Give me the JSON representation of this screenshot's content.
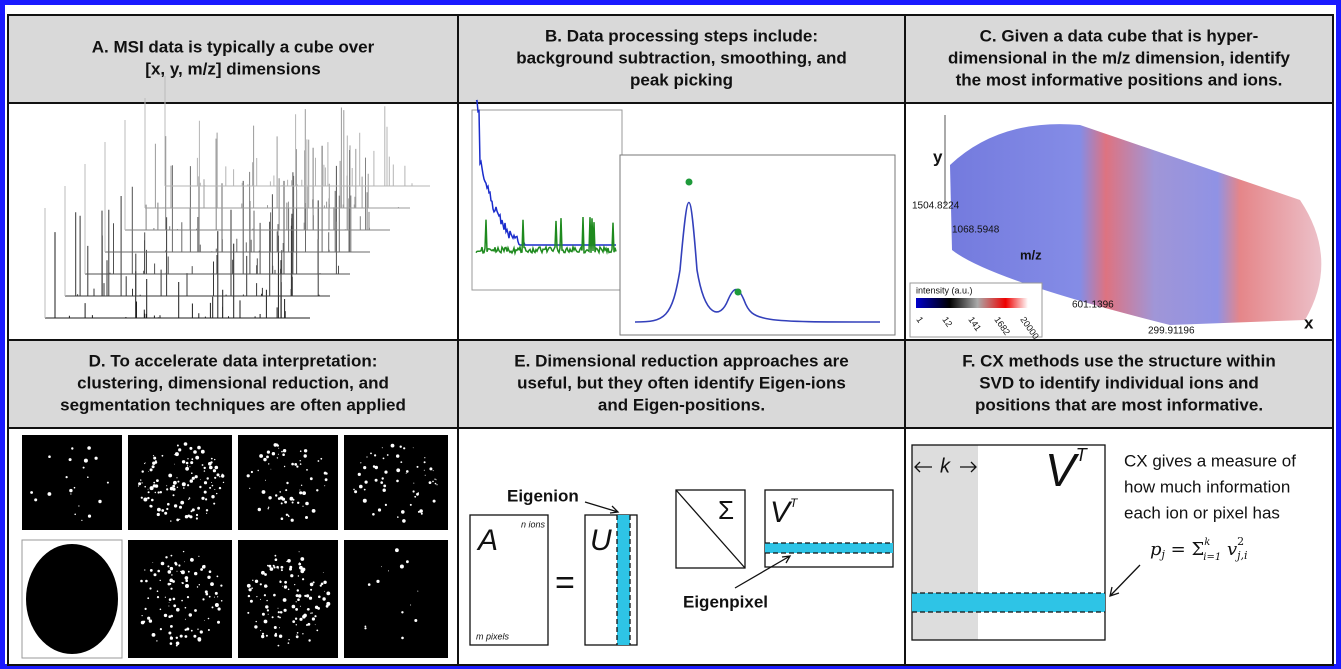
{
  "panels": [
    {
      "title_lines": [
        "A. MSI data is typically a cube over",
        "[x, y, m/z] dimensions"
      ]
    },
    {
      "title_lines": [
        "B. Data processing steps include:",
        "background subtraction, smoothing, and",
        "peak picking"
      ]
    },
    {
      "title_lines": [
        "C. Given a data cube that is hyper-",
        "dimensional in the m/z dimension, identify",
        "the most informative positions and ions."
      ],
      "axis_labels": {
        "y": "y",
        "x": "x",
        "mz": "m/z",
        "ticks": [
          "1504.8224",
          "1068.5948",
          "601.1396",
          "299.91196"
        ]
      },
      "colorbar": {
        "title": "intensity (a.u.)",
        "ticks": [
          "1",
          "12",
          "141",
          "1682",
          "20000"
        ]
      }
    },
    {
      "title_lines": [
        "D. To accelerate data interpretation:",
        "clustering, dimensional reduction, and",
        "segmentation techniques are often applied"
      ]
    },
    {
      "title_lines": [
        "E. Dimensional reduction approaches are",
        "useful, but they often identify Eigen-ions",
        "and Eigen-positions."
      ],
      "labels": {
        "eigenion": "Eigenion",
        "eigenpixel": "Eigenpixel",
        "a": "A",
        "n_ions": "n ions",
        "m_pixels": "m pixels",
        "equals": "=",
        "u": "U",
        "sigma": "Σ",
        "v": "V",
        "t": "T"
      }
    },
    {
      "title_lines": [
        "F. CX methods use the structure within",
        "SVD to identify individual ions and",
        "positions that are most informative."
      ],
      "labels": {
        "v": "V",
        "t": "T",
        "k": "k"
      },
      "text_lines": [
        "CX gives a measure of",
        "how much information",
        "each ion or pixel has"
      ],
      "formula": [
        "p",
        "j",
        " = Σ",
        "k",
        "i=1",
        " v",
        "2",
        "j,i"
      ]
    }
  ]
}
